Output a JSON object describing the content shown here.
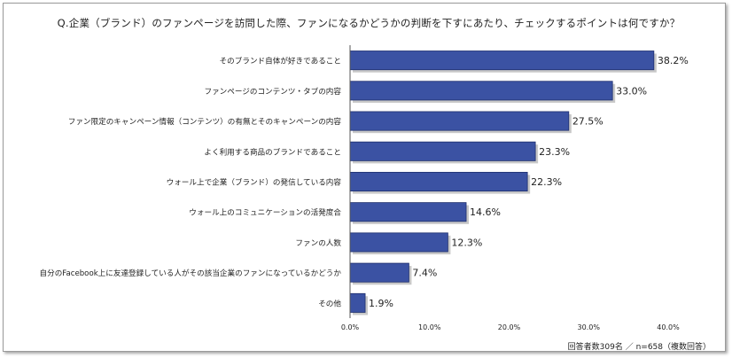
{
  "chart_data": {
    "type": "bar",
    "orientation": "horizontal",
    "title": "Q.企業（ブランド）のファンページを訪問した際、ファンになるかどうかの判断を下すにあたり、チェックするポイントは何ですか？",
    "categories": [
      "そのブランド自体が好きであること",
      "ファンページのコンテンツ・タブの内容",
      "ファン限定のキャンペーン情報（コンテンツ）の有無とそのキャンペーンの内容",
      "よく利用する商品のブランドであること",
      "ウォール上で企業（ブランド）の発信している内容",
      "ウォール上のコミュニケーションの活発度合",
      "ファンの人数",
      "自分のFacebook上に友達登録している人がその該当企業のファンになっているかどうか",
      "その他"
    ],
    "values": [
      38.2,
      33.0,
      27.5,
      23.3,
      22.3,
      14.6,
      12.3,
      7.4,
      1.9
    ],
    "value_labels": [
      "38.2%",
      "33.0%",
      "27.5%",
      "23.3%",
      "22.3%",
      "14.6%",
      "12.3%",
      "7.4%",
      "1.9%"
    ],
    "xlim": [
      0,
      40
    ],
    "x_ticks": [
      "0.0%",
      "10.0%",
      "20.0%",
      "30.0%",
      "40.0%"
    ],
    "grid": false,
    "colors": {
      "bar_fill": "#3b52a3",
      "bar_edge": "#1f2f6e",
      "bar_shadow": "#9a9a9a"
    }
  },
  "footnote": "回答者数309名 ／ n=658（複数回答）"
}
